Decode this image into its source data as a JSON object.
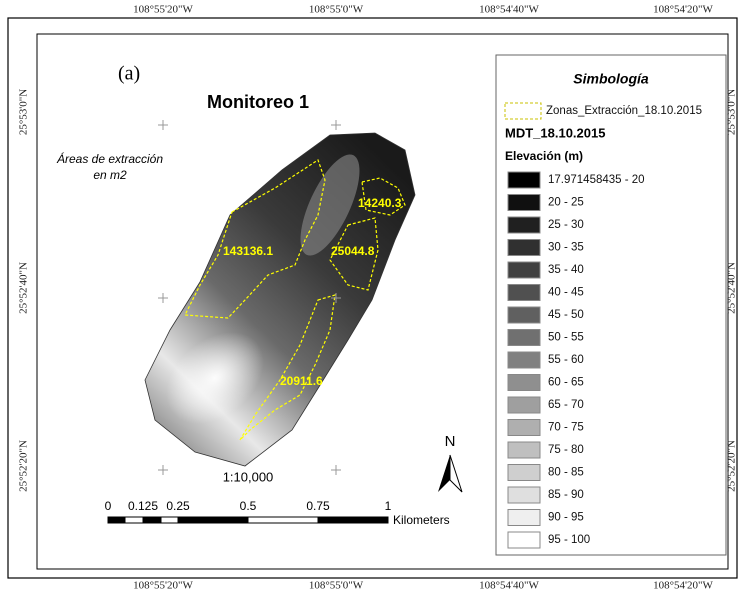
{
  "panel_label": "(a)",
  "title": "Monitoreo 1",
  "subtitle_lines": [
    "Áreas de extracción",
    "en m2"
  ],
  "top_coords": [
    "108°55'20\"W",
    "108°55'0\"W",
    "108°54'40\"W",
    "108°54'20\"W"
  ],
  "bottom_coords": [
    "108°55'20\"W",
    "108°55'0\"W",
    "108°54'40\"W",
    "108°54'20\"W"
  ],
  "left_coords": [
    "25°53'0\"N",
    "25°52'40\"N",
    "25°52'20\"N"
  ],
  "right_coords": [
    "25°53'0\"N",
    "25°52'40\"N",
    "25°52'20\"N"
  ],
  "zone_labels": [
    "14240.3",
    "25044.8",
    "143136.1",
    "20911.6"
  ],
  "scale_text": "1:10,000",
  "scale_bar": {
    "labels": [
      "0",
      "0.125",
      "0.25",
      "0.5",
      "0.75",
      "1"
    ],
    "unit": "Kilometers"
  },
  "north": "N",
  "legend": {
    "title": "Simbología",
    "zone_layer": "Zonas_Extracción_18.10.2015",
    "dem_name": "MDT_18.10.2015",
    "field": "Elevación (m)",
    "classes": [
      {
        "label": "17.971458435 - 20",
        "color": "#000000"
      },
      {
        "label": "20 - 25",
        "color": "#101010"
      },
      {
        "label": "25 - 30",
        "color": "#202020"
      },
      {
        "label": "30 - 35",
        "color": "#303030"
      },
      {
        "label": "35 - 40",
        "color": "#404040"
      },
      {
        "label": "40 - 45",
        "color": "#505050"
      },
      {
        "label": "45 - 50",
        "color": "#606060"
      },
      {
        "label": "50 - 55",
        "color": "#707070"
      },
      {
        "label": "55 - 60",
        "color": "#808080"
      },
      {
        "label": "60 - 65",
        "color": "#8f8f8f"
      },
      {
        "label": "65 - 70",
        "color": "#9f9f9f"
      },
      {
        "label": "70 - 75",
        "color": "#afafaf"
      },
      {
        "label": "75 - 80",
        "color": "#bfbfbf"
      },
      {
        "label": "80 - 85",
        "color": "#cfcfcf"
      },
      {
        "label": "85 - 90",
        "color": "#dfdfdf"
      },
      {
        "label": "90 - 95",
        "color": "#efefef"
      },
      {
        "label": "95 - 100",
        "color": "#ffffff"
      }
    ]
  }
}
